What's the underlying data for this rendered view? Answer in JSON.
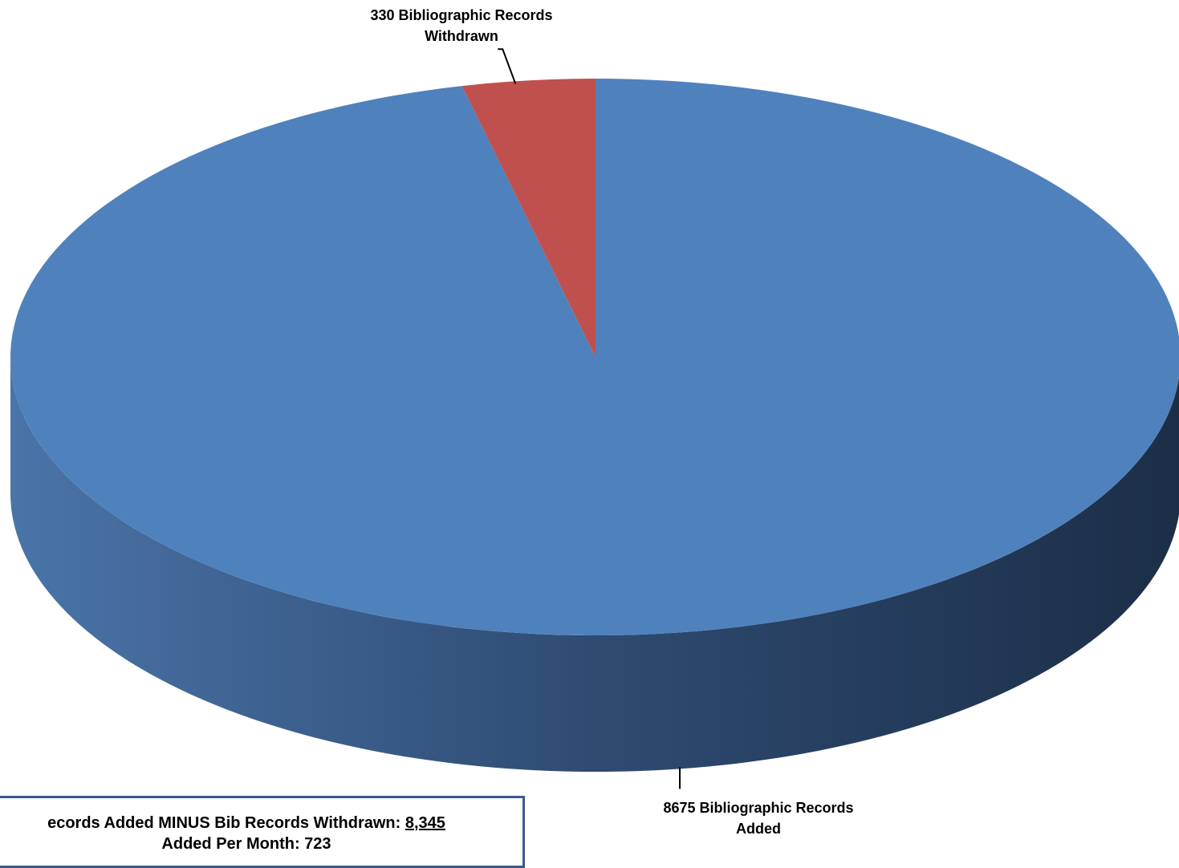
{
  "chart_data": {
    "type": "pie",
    "style": "3d",
    "slices": [
      {
        "label_line1": "8675 Bibliographic Records",
        "label_line2": "Added",
        "value": 8675,
        "color": "#4f81bd"
      },
      {
        "label_line1": "330 Bibliographic Records",
        "label_line2": "Withdrawn",
        "value": 330,
        "color": "#c0504d"
      }
    ]
  },
  "summary": {
    "line1_text": "ecords Added MINUS Bib Records Withdrawn: ",
    "line1_value": "8,345",
    "line2_text": "Added Per Month: 723"
  }
}
